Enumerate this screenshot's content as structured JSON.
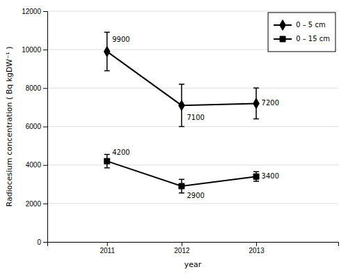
{
  "chart_data": {
    "type": "line",
    "x": [
      2011,
      2012,
      2013
    ],
    "xlabel": "year",
    "ylabel": "Radiocesium concentration ( Bq kgDW⁻¹ )",
    "xlim": [
      2010.2,
      2014.1
    ],
    "xticks": [
      2011,
      2012,
      2013
    ],
    "ylim": [
      0,
      12000
    ],
    "yticks": [
      0,
      2000,
      4000,
      6000,
      8000,
      10000,
      12000
    ],
    "grid": true,
    "legend": "upper right",
    "color": "#000000",
    "series": [
      {
        "name": "0 – 5 cm",
        "values": [
          9900,
          7100,
          7200
        ],
        "errors": [
          1000,
          1100,
          800
        ],
        "marker": "diamond",
        "annotations": [
          {
            "text": "9900",
            "x": 2011.07,
            "y": 10500
          },
          {
            "text": "7100",
            "x": 2012.07,
            "y": 6450
          },
          {
            "text": "7200",
            "x": 2013.07,
            "y": 7200
          }
        ]
      },
      {
        "name": "0 – 15 cm",
        "values": [
          4200,
          2900,
          3400
        ],
        "errors": [
          350,
          350,
          250
        ],
        "marker": "square",
        "annotations": [
          {
            "text": "4200",
            "x": 2011.07,
            "y": 4650
          },
          {
            "text": "2900",
            "x": 2012.07,
            "y": 2400
          },
          {
            "text": "3400",
            "x": 2013.07,
            "y": 3400
          }
        ]
      }
    ]
  }
}
